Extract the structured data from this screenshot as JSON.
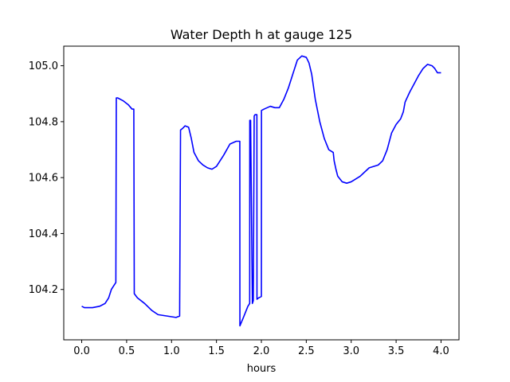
{
  "chart_data": {
    "type": "line",
    "title": "Water Depth h at gauge 125",
    "xlabel": "hours",
    "ylabel": "",
    "xlim": [
      -0.2,
      4.2
    ],
    "ylim": [
      104.02,
      105.07
    ],
    "grid": false,
    "x_ticks": [
      0.0,
      0.5,
      1.0,
      1.5,
      2.0,
      2.5,
      3.0,
      3.5,
      4.0
    ],
    "x_tick_labels": [
      "0.0",
      "0.5",
      "1.0",
      "1.5",
      "2.0",
      "2.5",
      "3.0",
      "3.5",
      "4.0"
    ],
    "y_ticks": [
      104.2,
      104.4,
      104.6,
      104.8,
      105.0
    ],
    "y_tick_labels": [
      "104.2",
      "104.4",
      "104.6",
      "104.8",
      "105.0"
    ],
    "series": [
      {
        "color": "#0000ff",
        "x": [
          0.0,
          0.03,
          0.12,
          0.2,
          0.26,
          0.3,
          0.33,
          0.36,
          0.38,
          0.385,
          0.4,
          0.46,
          0.52,
          0.56,
          0.58,
          0.585,
          0.62,
          0.7,
          0.78,
          0.85,
          0.95,
          1.05,
          1.09,
          1.1,
          1.12,
          1.15,
          1.19,
          1.22,
          1.25,
          1.3,
          1.35,
          1.4,
          1.45,
          1.5,
          1.53,
          1.58,
          1.65,
          1.72,
          1.76,
          1.761,
          1.8,
          1.85,
          1.87,
          1.871,
          1.88,
          1.9,
          1.91,
          1.92,
          1.93,
          1.95,
          1.951,
          1.97,
          2.0,
          2.001,
          2.03,
          2.1,
          2.15,
          2.2,
          2.25,
          2.3,
          2.35,
          2.4,
          2.45,
          2.5,
          2.53,
          2.56,
          2.6,
          2.65,
          2.7,
          2.75,
          2.8,
          2.81,
          2.83,
          2.85,
          2.9,
          2.95,
          3.0,
          3.05,
          3.1,
          3.15,
          3.2,
          3.25,
          3.3,
          3.35,
          3.4,
          3.45,
          3.5,
          3.55,
          3.58,
          3.6,
          3.65,
          3.7,
          3.75,
          3.8,
          3.85,
          3.9,
          3.93,
          3.96,
          3.98,
          4.0
        ],
        "y": [
          104.14,
          104.135,
          104.135,
          104.14,
          104.15,
          104.17,
          104.2,
          104.215,
          104.225,
          104.885,
          104.885,
          104.875,
          104.86,
          104.845,
          104.845,
          104.185,
          104.17,
          104.15,
          104.125,
          104.11,
          104.105,
          104.1,
          104.105,
          104.77,
          104.775,
          104.785,
          104.78,
          104.74,
          104.69,
          104.66,
          104.645,
          104.635,
          104.63,
          104.64,
          104.655,
          104.68,
          104.72,
          104.73,
          104.73,
          104.07,
          104.1,
          104.14,
          104.15,
          104.805,
          104.805,
          104.15,
          104.16,
          104.82,
          104.825,
          104.825,
          104.165,
          104.17,
          104.175,
          104.84,
          104.845,
          104.855,
          104.85,
          104.85,
          104.88,
          104.92,
          104.97,
          105.02,
          105.035,
          105.03,
          105.01,
          104.97,
          104.88,
          104.8,
          104.74,
          104.7,
          104.69,
          104.66,
          104.63,
          104.605,
          104.585,
          104.58,
          104.585,
          104.595,
          104.605,
          104.62,
          104.635,
          104.64,
          104.645,
          104.66,
          104.7,
          104.76,
          104.79,
          104.81,
          104.835,
          104.87,
          104.905,
          104.935,
          104.965,
          104.99,
          105.005,
          105.0,
          104.99,
          104.975,
          104.975,
          104.975
        ]
      }
    ]
  }
}
